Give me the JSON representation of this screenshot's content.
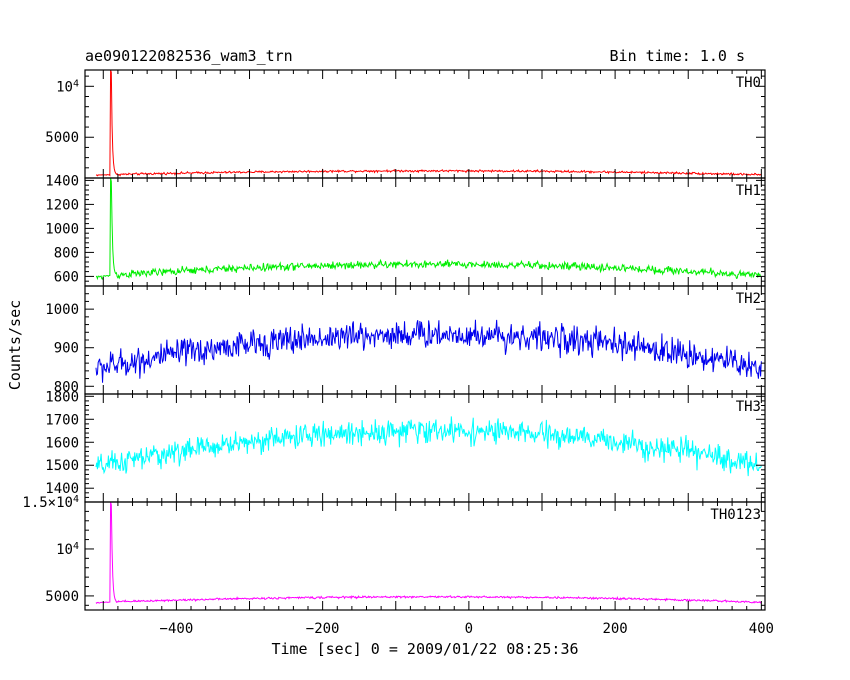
{
  "chart_data": {
    "type": "line",
    "title": "ae090122082536_wam3_trn",
    "bin_time": "Bin time: 1.0 s",
    "xlabel": "Time [sec] 0 = 2009/01/22 08:25:36",
    "ylabel": "Counts/sec",
    "xlim": [
      -525,
      405
    ],
    "x_ticks": [
      {
        "v": -400,
        "label": "−400"
      },
      {
        "v": -200,
        "label": "−200"
      },
      {
        "v": 0,
        "label": "0"
      },
      {
        "v": 200,
        "label": "200"
      },
      {
        "v": 400,
        "label": "400"
      }
    ],
    "grid": false,
    "panels": [
      {
        "name": "TH0",
        "color": "#ff0000",
        "ylim": [
          1000,
          11600
        ],
        "y_ticks": [
          {
            "v": 5000,
            "label": "5000"
          },
          {
            "v": 10000,
            "label": "10^4"
          }
        ],
        "burst": {
          "t": -490,
          "peak": 11600,
          "second": 6200
        },
        "baseline_edge": 1300,
        "baseline_center": 1700,
        "noise": 90
      },
      {
        "name": "TH1",
        "color": "#00ee00",
        "ylim": [
          520,
          1420
        ],
        "y_ticks": [
          {
            "v": 600,
            "label": "600"
          },
          {
            "v": 800,
            "label": "800"
          },
          {
            "v": 1000,
            "label": "1000"
          },
          {
            "v": 1200,
            "label": "1200"
          },
          {
            "v": 1400,
            "label": "1400"
          }
        ],
        "burst": {
          "t": -490,
          "peak": 1420,
          "second": 1050
        },
        "baseline_edge": 600,
        "baseline_center": 700,
        "noise": 28
      },
      {
        "name": "TH2",
        "color": "#0000ee",
        "ylim": [
          780,
          1060
        ],
        "y_ticks": [
          {
            "v": 800,
            "label": "800"
          },
          {
            "v": 900,
            "label": "900"
          },
          {
            "v": 1000,
            "label": "1000"
          }
        ],
        "burst": null,
        "baseline_edge": 845,
        "baseline_center": 935,
        "noise": 32
      },
      {
        "name": "TH3",
        "color": "#00ffff",
        "ylim": [
          1340,
          1810
        ],
        "y_ticks": [
          {
            "v": 1400,
            "label": "1400"
          },
          {
            "v": 1500,
            "label": "1500"
          },
          {
            "v": 1600,
            "label": "1600"
          },
          {
            "v": 1700,
            "label": "1700"
          },
          {
            "v": 1800,
            "label": "1800"
          }
        ],
        "burst": null,
        "baseline_edge": 1490,
        "baseline_center": 1650,
        "noise": 45
      },
      {
        "name": "TH0123",
        "color": "#ff00ff",
        "ylim": [
          3500,
          15000
        ],
        "y_ticks": [
          {
            "v": 5000,
            "label": "5000"
          },
          {
            "v": 10000,
            "label": "10^4"
          },
          {
            "v": 15000,
            "label": "1.5×10^4"
          }
        ],
        "burst": {
          "t": -490,
          "peak": 15000,
          "second": 10000
        },
        "baseline_edge": 4300,
        "baseline_center": 4900,
        "noise": 90
      }
    ]
  }
}
